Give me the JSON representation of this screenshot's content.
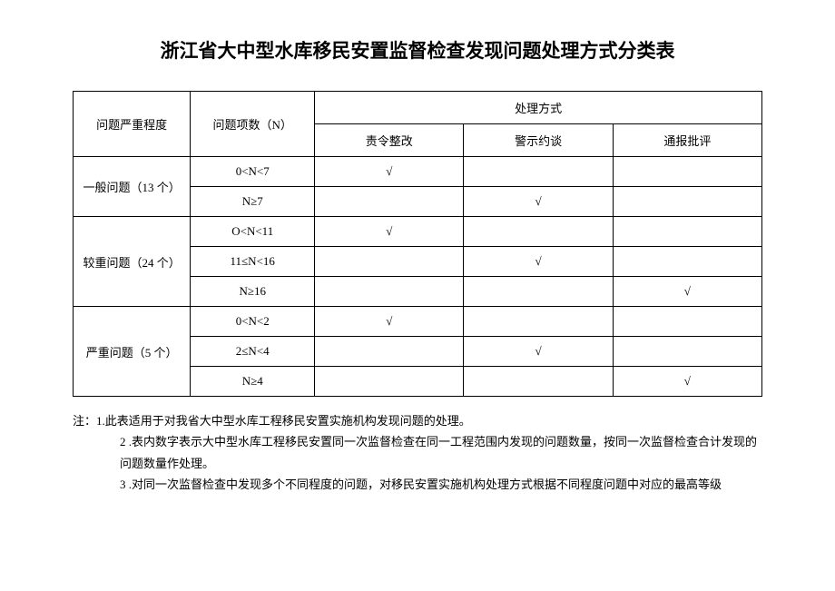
{
  "title": "浙江省大中型水库移民安置监督检查发现问题处理方式分类表",
  "table": {
    "headers": {
      "severity": "问题严重程度",
      "count": "问题项数（N）",
      "method_group": "处理方式",
      "method1": "责令整改",
      "method2": "警示约谈",
      "method3": "通报批评"
    },
    "check": "√",
    "groups": [
      {
        "label": "一般问题（13 个）",
        "rows": [
          {
            "range": "0<N<7",
            "c1": "√",
            "c2": "",
            "c3": ""
          },
          {
            "range": "N≥7",
            "c1": "",
            "c2": "√",
            "c3": ""
          }
        ]
      },
      {
        "label": "较重问题（24 个）",
        "rows": [
          {
            "range": "O<N<11",
            "c1": "√",
            "c2": "",
            "c3": ""
          },
          {
            "range": "11≤N<16",
            "c1": "",
            "c2": "√",
            "c3": ""
          },
          {
            "range": "N≥16",
            "c1": "",
            "c2": "",
            "c3": "√"
          }
        ]
      },
      {
        "label": "严重问题（5 个）",
        "rows": [
          {
            "range": "0<N<2",
            "c1": "√",
            "c2": "",
            "c3": ""
          },
          {
            "range": "2≤N<4",
            "c1": "",
            "c2": "√",
            "c3": ""
          },
          {
            "range": "N≥4",
            "c1": "",
            "c2": "",
            "c3": "√"
          }
        ]
      }
    ]
  },
  "notes": {
    "prefix": "注：",
    "n1": "1.此表适用于对我省大中型水库工程移民安置实施机构发现问题的处理。",
    "n2": "2 .表内数字表示大中型水库工程移民安置同一次监督检查在同一工程范围内发现的问题数量，按同一次监督检查合计发现的问题数量作处理。",
    "n3": "3 .对同一次监督检查中发现多个不同程度的问题，对移民安置实施机构处理方式根据不同程度问题中对应的最高等级"
  }
}
